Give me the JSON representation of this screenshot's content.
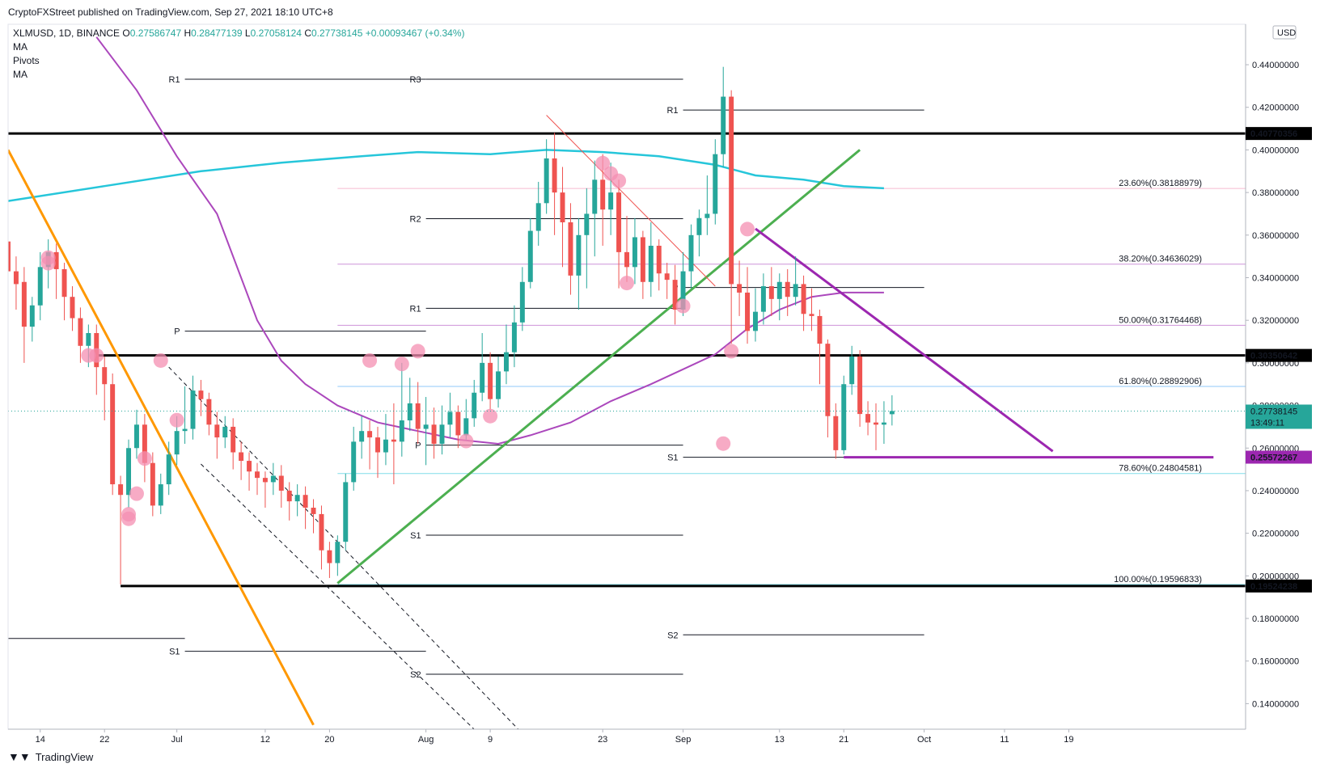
{
  "header": {
    "publisher": "CryptoFXStreet published on TradingView.com, Sep 27, 2021 18:10 UTC+8"
  },
  "legend": {
    "symbol": "XLMUSD, 1D, BINANCE",
    "open_label": "O",
    "open": "0.27586747",
    "high_label": "H",
    "high": "0.28477139",
    "low_label": "L",
    "low": "0.27058124",
    "close_label": "C",
    "close": "0.27738145",
    "change": "+0.00093467 (+0.34%)",
    "indicators": [
      "MA",
      "Pivots",
      "MA"
    ]
  },
  "branding": {
    "logo_text": "TradingView"
  },
  "colors": {
    "bull": "#26a69a",
    "bear": "#ef5350",
    "orange_line": "#ff9800",
    "green_line": "#4caf50",
    "purple_line": "#9c27b0",
    "ma_cyan": "#26c6da",
    "ma_purple": "#ab47bc",
    "circle": "#f48fb1",
    "fib_pink": "#f8bbd0",
    "fib_violet": "#ce93d8",
    "fib_blue": "#90caf9",
    "fib_teal": "#80deea"
  },
  "chart_data": {
    "type": "candlestick",
    "currency": "USD",
    "y_axis_ticks": [
      "0.44000000",
      "0.42000000",
      "0.40000000",
      "0.38000000",
      "0.36000000",
      "0.34000000",
      "0.32000000",
      "0.30000000",
      "0.28000000",
      "0.26000000",
      "0.24000000",
      "0.22000000",
      "0.20000000",
      "0.18000000",
      "0.16000000",
      "0.14000000"
    ],
    "y_tick_values": [
      0.44,
      0.42,
      0.4,
      0.38,
      0.36,
      0.34,
      0.32,
      0.3,
      0.28,
      0.26,
      0.24,
      0.22,
      0.2,
      0.18,
      0.16,
      0.14
    ],
    "ylim": [
      0.128,
      0.459
    ],
    "x_axis_labels": [
      "14",
      "22",
      "Jul",
      "12",
      "20",
      "Aug",
      "9",
      "23",
      "Sep",
      "13",
      "21",
      "Oct",
      "11",
      "19"
    ],
    "x_label_days": [
      0,
      8,
      17,
      28,
      36,
      48,
      56,
      70,
      80,
      92,
      100,
      110,
      120,
      128
    ],
    "day_range": [
      -4,
      150
    ],
    "horizontal_levels": [
      {
        "label": "0.40770356",
        "value": 0.40770356
      },
      {
        "label": "0.30350642",
        "value": 0.30350642
      },
      {
        "label": "0.25572267",
        "value": 0.25572267
      },
      {
        "label": "0.19524238",
        "value": 0.19524238
      }
    ],
    "current_price": {
      "label": "0.27738145",
      "countdown": "13:49:11",
      "value": 0.27738145
    },
    "fibonacci": [
      {
        "label": "23.60%(0.38188979)",
        "value": 0.38188979
      },
      {
        "label": "38.20%(0.34636029)",
        "value": 0.34636029
      },
      {
        "label": "50.00%(0.31764468)",
        "value": 0.31764468
      },
      {
        "label": "61.80%(0.28892906)",
        "value": 0.28892906
      },
      {
        "label": "78.60%(0.24804581)",
        "value": 0.24804581
      },
      {
        "label": "100.00%(0.19596833)",
        "value": 0.19596833
      }
    ],
    "pivots": [
      {
        "label": "R1",
        "value": 0.4332,
        "from": 18,
        "to": 48
      },
      {
        "label": "P",
        "value": 0.3149,
        "from": 18,
        "to": 48
      },
      {
        "label": "S1",
        "value": 0.1646,
        "from": 18,
        "to": 48
      },
      {
        "label": "",
        "value": 0.1706,
        "from": -4,
        "to": 18
      },
      {
        "label": "R3",
        "value": 0.4332,
        "from": 48,
        "to": 80
      },
      {
        "label": "R2",
        "value": 0.3677,
        "from": 48,
        "to": 80
      },
      {
        "label": "R1",
        "value": 0.3256,
        "from": 48,
        "to": 80
      },
      {
        "label": "P",
        "value": 0.2614,
        "from": 48,
        "to": 80
      },
      {
        "label": "S1",
        "value": 0.2191,
        "from": 48,
        "to": 80
      },
      {
        "label": "S2",
        "value": 0.1538,
        "from": 48,
        "to": 80
      },
      {
        "label": "R1",
        "value": 0.4187,
        "from": 80,
        "to": 110
      },
      {
        "label": "P",
        "value": 0.3354,
        "from": 80,
        "to": 110
      },
      {
        "label": "S1",
        "value": 0.2557,
        "from": 80,
        "to": 110
      },
      {
        "label": "S2",
        "value": 0.1723,
        "from": 80,
        "to": 110
      }
    ],
    "trendlines": [
      {
        "name": "orange",
        "points": [
          [
            -4,
            0.4
          ],
          [
            34,
            0.13
          ]
        ]
      },
      {
        "name": "green",
        "points": [
          [
            37,
            0.1965
          ],
          [
            102,
            0.4
          ]
        ]
      },
      {
        "name": "purple",
        "points": [
          [
            89,
            0.363
          ],
          [
            126,
            0.2585
          ]
        ]
      },
      {
        "name": "purple-support",
        "points": [
          [
            100,
            0.2557
          ],
          [
            146,
            0.2557
          ]
        ]
      },
      {
        "name": "thin-red",
        "points": [
          [
            63,
            0.4163
          ],
          [
            84,
            0.336
          ]
        ]
      },
      {
        "name": "dash-upper",
        "points": [
          [
            16,
            0.298
          ],
          [
            60,
            0.126
          ]
        ]
      },
      {
        "name": "dash-lower",
        "points": [
          [
            20,
            0.2525
          ],
          [
            60,
            0.106
          ]
        ]
      }
    ],
    "ma_200": [
      [
        -4,
        0.376
      ],
      [
        8,
        0.383
      ],
      [
        20,
        0.39
      ],
      [
        30,
        0.394
      ],
      [
        40,
        0.397
      ],
      [
        47,
        0.399
      ],
      [
        56,
        0.398
      ],
      [
        63,
        0.4
      ],
      [
        70,
        0.399
      ],
      [
        77,
        0.397
      ],
      [
        84,
        0.393
      ],
      [
        89,
        0.388
      ],
      [
        95,
        0.386
      ],
      [
        100,
        0.383
      ],
      [
        105,
        0.382
      ]
    ],
    "ma_50": [
      [
        7,
        0.453
      ],
      [
        12,
        0.428
      ],
      [
        17,
        0.397
      ],
      [
        22,
        0.37
      ],
      [
        27,
        0.32
      ],
      [
        30,
        0.301
      ],
      [
        33,
        0.29
      ],
      [
        37,
        0.28
      ],
      [
        42,
        0.272
      ],
      [
        47,
        0.268
      ],
      [
        52,
        0.264
      ],
      [
        57,
        0.262
      ],
      [
        61,
        0.266
      ],
      [
        66,
        0.272
      ],
      [
        71,
        0.282
      ],
      [
        76,
        0.29
      ],
      [
        80,
        0.297
      ],
      [
        84,
        0.304
      ],
      [
        88,
        0.316
      ],
      [
        92,
        0.325
      ],
      [
        96,
        0.331
      ],
      [
        100,
        0.333
      ],
      [
        105,
        0.333
      ]
    ],
    "circles": [
      [
        1,
        0.3494
      ],
      [
        1,
        0.3468
      ],
      [
        6,
        0.3035
      ],
      [
        7,
        0.3035
      ],
      [
        11,
        0.2289
      ],
      [
        11,
        0.2268
      ],
      [
        12,
        0.2386
      ],
      [
        13,
        0.2551
      ],
      [
        15,
        0.3011
      ],
      [
        17,
        0.2731
      ],
      [
        41,
        0.3011
      ],
      [
        45,
        0.2995
      ],
      [
        47,
        0.3055
      ],
      [
        53,
        0.2633
      ],
      [
        56,
        0.275
      ],
      [
        70,
        0.3938
      ],
      [
        71,
        0.3889
      ],
      [
        72,
        0.3855
      ],
      [
        73,
        0.3375
      ],
      [
        80,
        0.3267
      ],
      [
        85,
        0.2621
      ],
      [
        86,
        0.3055
      ],
      [
        88,
        0.3628
      ]
    ],
    "candles": [
      [
        -4,
        0.357,
        0.343,
        0.372,
        0.338
      ],
      [
        -3,
        0.343,
        0.337,
        0.35,
        0.325
      ],
      [
        -2,
        0.338,
        0.317,
        0.345,
        0.3
      ],
      [
        -1,
        0.317,
        0.327,
        0.331,
        0.31
      ],
      [
        0,
        0.327,
        0.345,
        0.352,
        0.32
      ],
      [
        1,
        0.345,
        0.352,
        0.358,
        0.335
      ],
      [
        2,
        0.352,
        0.344,
        0.356,
        0.33
      ],
      [
        3,
        0.344,
        0.331,
        0.347,
        0.32
      ],
      [
        4,
        0.331,
        0.321,
        0.336,
        0.315
      ],
      [
        5,
        0.321,
        0.308,
        0.326,
        0.3
      ],
      [
        6,
        0.308,
        0.314,
        0.318,
        0.298
      ],
      [
        7,
        0.314,
        0.298,
        0.318,
        0.285
      ],
      [
        8,
        0.298,
        0.29,
        0.303,
        0.273
      ],
      [
        9,
        0.29,
        0.243,
        0.295,
        0.238
      ],
      [
        10,
        0.243,
        0.238,
        0.247,
        0.196
      ],
      [
        11,
        0.238,
        0.26,
        0.264,
        0.232
      ],
      [
        12,
        0.26,
        0.271,
        0.278,
        0.255
      ],
      [
        13,
        0.271,
        0.253,
        0.276,
        0.244
      ],
      [
        14,
        0.253,
        0.233,
        0.258,
        0.228
      ],
      [
        15,
        0.233,
        0.243,
        0.248,
        0.229
      ],
      [
        16,
        0.243,
        0.257,
        0.263,
        0.238
      ],
      [
        17,
        0.257,
        0.268,
        0.275,
        0.252
      ],
      [
        18,
        0.268,
        0.269,
        0.289,
        0.262
      ],
      [
        19,
        0.269,
        0.287,
        0.294,
        0.264
      ],
      [
        20,
        0.287,
        0.283,
        0.292,
        0.275
      ],
      [
        21,
        0.283,
        0.271,
        0.286,
        0.266
      ],
      [
        22,
        0.271,
        0.265,
        0.277,
        0.255
      ],
      [
        23,
        0.265,
        0.27,
        0.275,
        0.26
      ],
      [
        24,
        0.27,
        0.258,
        0.274,
        0.25
      ],
      [
        25,
        0.258,
        0.254,
        0.263,
        0.245
      ],
      [
        26,
        0.254,
        0.249,
        0.258,
        0.24
      ],
      [
        27,
        0.249,
        0.246,
        0.253,
        0.238
      ],
      [
        28,
        0.246,
        0.244,
        0.249,
        0.232
      ],
      [
        29,
        0.244,
        0.247,
        0.253,
        0.238
      ],
      [
        30,
        0.247,
        0.24,
        0.252,
        0.232
      ],
      [
        31,
        0.24,
        0.235,
        0.244,
        0.226
      ],
      [
        32,
        0.235,
        0.238,
        0.243,
        0.228
      ],
      [
        33,
        0.238,
        0.232,
        0.242,
        0.222
      ],
      [
        34,
        0.232,
        0.229,
        0.236,
        0.22
      ],
      [
        35,
        0.229,
        0.212,
        0.233,
        0.203
      ],
      [
        36,
        0.212,
        0.206,
        0.216,
        0.199
      ],
      [
        37,
        0.206,
        0.216,
        0.219,
        0.2
      ],
      [
        38,
        0.216,
        0.244,
        0.248,
        0.212
      ],
      [
        39,
        0.244,
        0.263,
        0.27,
        0.24
      ],
      [
        40,
        0.263,
        0.268,
        0.275,
        0.255
      ],
      [
        41,
        0.268,
        0.265,
        0.273,
        0.25
      ],
      [
        42,
        0.265,
        0.258,
        0.27,
        0.246
      ],
      [
        43,
        0.258,
        0.264,
        0.276,
        0.252
      ],
      [
        44,
        0.264,
        0.263,
        0.281,
        0.243
      ],
      [
        45,
        0.263,
        0.273,
        0.3,
        0.256
      ],
      [
        46,
        0.273,
        0.281,
        0.293,
        0.268
      ],
      [
        47,
        0.281,
        0.269,
        0.291,
        0.262
      ],
      [
        48,
        0.269,
        0.271,
        0.284,
        0.252
      ],
      [
        49,
        0.271,
        0.262,
        0.279,
        0.255
      ],
      [
        50,
        0.262,
        0.271,
        0.28,
        0.257
      ],
      [
        51,
        0.271,
        0.277,
        0.286,
        0.265
      ],
      [
        52,
        0.277,
        0.266,
        0.28,
        0.26
      ],
      [
        53,
        0.266,
        0.274,
        0.283,
        0.264
      ],
      [
        54,
        0.274,
        0.286,
        0.292,
        0.27
      ],
      [
        55,
        0.286,
        0.3,
        0.314,
        0.282
      ],
      [
        56,
        0.3,
        0.283,
        0.305,
        0.278
      ],
      [
        57,
        0.283,
        0.296,
        0.303,
        0.279
      ],
      [
        58,
        0.296,
        0.305,
        0.318,
        0.29
      ],
      [
        59,
        0.305,
        0.319,
        0.327,
        0.298
      ],
      [
        60,
        0.319,
        0.338,
        0.345,
        0.315
      ],
      [
        61,
        0.338,
        0.362,
        0.368,
        0.335
      ],
      [
        62,
        0.362,
        0.375,
        0.385,
        0.355
      ],
      [
        63,
        0.375,
        0.396,
        0.405,
        0.37
      ],
      [
        64,
        0.396,
        0.38,
        0.408,
        0.36
      ],
      [
        65,
        0.38,
        0.366,
        0.392,
        0.345
      ],
      [
        66,
        0.366,
        0.341,
        0.375,
        0.332
      ],
      [
        67,
        0.341,
        0.36,
        0.368,
        0.325
      ],
      [
        68,
        0.36,
        0.37,
        0.382,
        0.335
      ],
      [
        69,
        0.37,
        0.386,
        0.395,
        0.35
      ],
      [
        70,
        0.386,
        0.372,
        0.398,
        0.355
      ],
      [
        71,
        0.372,
        0.38,
        0.394,
        0.36
      ],
      [
        72,
        0.38,
        0.352,
        0.386,
        0.335
      ],
      [
        73,
        0.352,
        0.345,
        0.369,
        0.338
      ],
      [
        74,
        0.345,
        0.359,
        0.368,
        0.337
      ],
      [
        75,
        0.359,
        0.338,
        0.362,
        0.33
      ],
      [
        76,
        0.338,
        0.355,
        0.366,
        0.331
      ],
      [
        77,
        0.355,
        0.342,
        0.358,
        0.334
      ],
      [
        78,
        0.342,
        0.339,
        0.347,
        0.33
      ],
      [
        79,
        0.339,
        0.325,
        0.346,
        0.318
      ],
      [
        80,
        0.325,
        0.343,
        0.352,
        0.322
      ],
      [
        81,
        0.343,
        0.36,
        0.365,
        0.335
      ],
      [
        82,
        0.36,
        0.368,
        0.372,
        0.35
      ],
      [
        83,
        0.368,
        0.37,
        0.388,
        0.36
      ],
      [
        84,
        0.37,
        0.398,
        0.405,
        0.365
      ],
      [
        85,
        0.398,
        0.425,
        0.439,
        0.392
      ],
      [
        86,
        0.425,
        0.337,
        0.428,
        0.309
      ],
      [
        87,
        0.337,
        0.333,
        0.348,
        0.322
      ],
      [
        88,
        0.333,
        0.315,
        0.345,
        0.309
      ],
      [
        89,
        0.315,
        0.324,
        0.335,
        0.31
      ],
      [
        90,
        0.324,
        0.336,
        0.342,
        0.318
      ],
      [
        91,
        0.336,
        0.33,
        0.345,
        0.322
      ],
      [
        92,
        0.33,
        0.338,
        0.342,
        0.32
      ],
      [
        93,
        0.338,
        0.331,
        0.344,
        0.322
      ],
      [
        94,
        0.331,
        0.337,
        0.35,
        0.327
      ],
      [
        95,
        0.337,
        0.323,
        0.341,
        0.315
      ],
      [
        96,
        0.323,
        0.322,
        0.335,
        0.315
      ],
      [
        97,
        0.322,
        0.309,
        0.325,
        0.29
      ],
      [
        98,
        0.309,
        0.275,
        0.311,
        0.265
      ],
      [
        99,
        0.275,
        0.259,
        0.281,
        0.255
      ],
      [
        100,
        0.259,
        0.29,
        0.294,
        0.257
      ],
      [
        101,
        0.29,
        0.303,
        0.308,
        0.285
      ],
      [
        102,
        0.303,
        0.276,
        0.306,
        0.27
      ],
      [
        103,
        0.276,
        0.272,
        0.282,
        0.266
      ],
      [
        104,
        0.272,
        0.271,
        0.281,
        0.259
      ],
      [
        105,
        0.271,
        0.272,
        0.282,
        0.262
      ],
      [
        106,
        0.2759,
        0.2774,
        0.2848,
        0.2706
      ]
    ]
  }
}
